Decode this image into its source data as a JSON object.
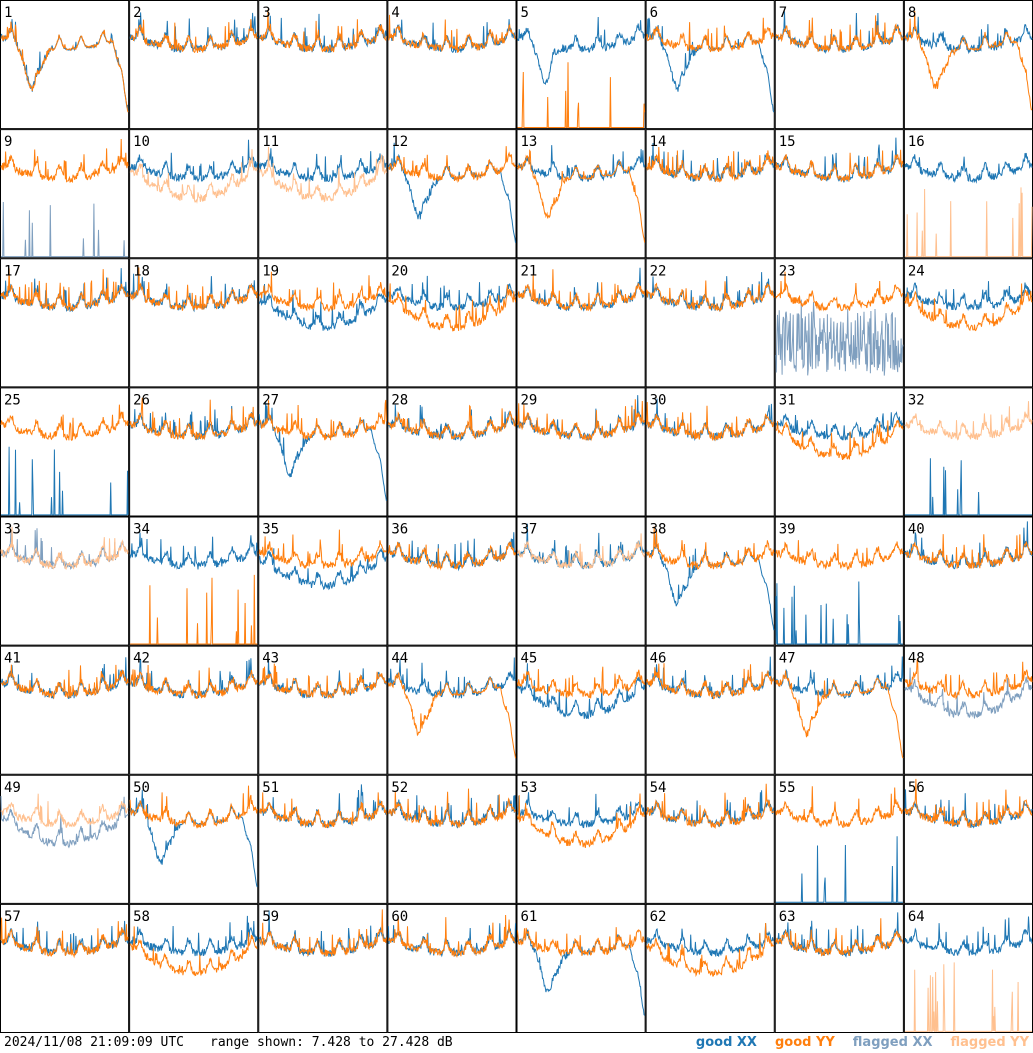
{
  "colors": {
    "good_xx": "#1f77b4",
    "good_yy": "#ff7f0e",
    "flagged_xx": "#7f9fbf",
    "flagged_yy": "#ffc08f",
    "border": "#000000",
    "background": "#ffffff"
  },
  "footer": {
    "timestamp": "2024/11/08 21:09:09 UTC",
    "range": "range shown: 7.428 to 27.428 dB"
  },
  "legend": [
    {
      "label": "good XX",
      "color": "#1f77b4"
    },
    {
      "label": "good YY",
      "color": "#ff7f0e"
    },
    {
      "label": "flagged XX",
      "color": "#7f9fbf"
    },
    {
      "label": "flagged YY",
      "color": "#ffc08f"
    }
  ],
  "chart_data": {
    "type": "line",
    "grid": "8x8 small multiples",
    "ylim": [
      7.428,
      27.428
    ],
    "yunit": "dB",
    "panels": [
      {
        "id": "1",
        "xx": "good",
        "yy": "good",
        "xx_style": "dip-tail",
        "yy_style": "dip-tail"
      },
      {
        "id": "2",
        "xx": "good",
        "yy": "good",
        "xx_style": "normal",
        "yy_style": "normal"
      },
      {
        "id": "3",
        "xx": "good",
        "yy": "good",
        "xx_style": "normal",
        "yy_style": "normal"
      },
      {
        "id": "4",
        "xx": "good",
        "yy": "good",
        "xx_style": "normal",
        "yy_style": "normal"
      },
      {
        "id": "5",
        "xx": "good",
        "yy": "good",
        "xx_style": "deep-dip",
        "yy_style": "spikes"
      },
      {
        "id": "6",
        "xx": "good",
        "yy": "good",
        "xx_style": "dip-tail",
        "yy_style": "normal"
      },
      {
        "id": "7",
        "xx": "good",
        "yy": "good",
        "xx_style": "normal",
        "yy_style": "normal"
      },
      {
        "id": "8",
        "xx": "good",
        "yy": "good",
        "xx_style": "normal",
        "yy_style": "dip-tail"
      },
      {
        "id": "9",
        "xx": "flagged",
        "yy": "good",
        "xx_style": "spikes",
        "yy_style": "normal"
      },
      {
        "id": "10",
        "xx": "good",
        "yy": "flagged",
        "xx_style": "normal",
        "yy_style": "low"
      },
      {
        "id": "11",
        "xx": "good",
        "yy": "flagged",
        "xx_style": "normal",
        "yy_style": "low"
      },
      {
        "id": "12",
        "xx": "good",
        "yy": "good",
        "xx_style": "dip-tail",
        "yy_style": "normal"
      },
      {
        "id": "13",
        "xx": "good",
        "yy": "good",
        "xx_style": "normal",
        "yy_style": "dip-tail"
      },
      {
        "id": "14",
        "xx": "good",
        "yy": "good",
        "xx_style": "normal",
        "yy_style": "normal"
      },
      {
        "id": "15",
        "xx": "good",
        "yy": "good",
        "xx_style": "normal",
        "yy_style": "normal"
      },
      {
        "id": "16",
        "xx": "good",
        "yy": "flagged",
        "xx_style": "normal",
        "yy_style": "spikes"
      },
      {
        "id": "17",
        "xx": "good",
        "yy": "good",
        "xx_style": "normal",
        "yy_style": "normal"
      },
      {
        "id": "18",
        "xx": "good",
        "yy": "good",
        "xx_style": "normal",
        "yy_style": "normal"
      },
      {
        "id": "19",
        "xx": "good",
        "yy": "good",
        "xx_style": "low",
        "yy_style": "normal"
      },
      {
        "id": "20",
        "xx": "good",
        "yy": "good",
        "xx_style": "normal",
        "yy_style": "low"
      },
      {
        "id": "21",
        "xx": "good",
        "yy": "good",
        "xx_style": "normal",
        "yy_style": "normal"
      },
      {
        "id": "22",
        "xx": "good",
        "yy": "good",
        "xx_style": "normal",
        "yy_style": "normal"
      },
      {
        "id": "23",
        "xx": "flagged",
        "yy": "good",
        "xx_style": "noise",
        "yy_style": "normal"
      },
      {
        "id": "24",
        "xx": "good",
        "yy": "good",
        "xx_style": "normal",
        "yy_style": "low"
      },
      {
        "id": "25",
        "xx": "good",
        "yy": "good",
        "xx_style": "spikes",
        "yy_style": "normal"
      },
      {
        "id": "26",
        "xx": "good",
        "yy": "good",
        "xx_style": "normal",
        "yy_style": "normal"
      },
      {
        "id": "27",
        "xx": "good",
        "yy": "good",
        "xx_style": "dip-tail",
        "yy_style": "normal"
      },
      {
        "id": "28",
        "xx": "good",
        "yy": "good",
        "xx_style": "normal",
        "yy_style": "normal"
      },
      {
        "id": "29",
        "xx": "good",
        "yy": "good",
        "xx_style": "normal",
        "yy_style": "normal"
      },
      {
        "id": "30",
        "xx": "good",
        "yy": "good",
        "xx_style": "normal",
        "yy_style": "normal"
      },
      {
        "id": "31",
        "xx": "good",
        "yy": "good",
        "xx_style": "normal",
        "yy_style": "low"
      },
      {
        "id": "32",
        "xx": "good",
        "yy": "flagged",
        "xx_style": "spikes",
        "yy_style": "normal"
      },
      {
        "id": "33",
        "xx": "flagged",
        "yy": "flagged",
        "xx_style": "normal",
        "yy_style": "normal"
      },
      {
        "id": "34",
        "xx": "good",
        "yy": "good",
        "xx_style": "normal",
        "yy_style": "spikes"
      },
      {
        "id": "35",
        "xx": "good",
        "yy": "good",
        "xx_style": "low",
        "yy_style": "normal"
      },
      {
        "id": "36",
        "xx": "good",
        "yy": "good",
        "xx_style": "normal",
        "yy_style": "normal"
      },
      {
        "id": "37",
        "xx": "good",
        "yy": "flagged",
        "xx_style": "normal",
        "yy_style": "normal"
      },
      {
        "id": "38",
        "xx": "good",
        "yy": "good",
        "xx_style": "dip-tail",
        "yy_style": "normal"
      },
      {
        "id": "39",
        "xx": "good",
        "yy": "good",
        "xx_style": "spikes",
        "yy_style": "normal"
      },
      {
        "id": "40",
        "xx": "good",
        "yy": "good",
        "xx_style": "normal",
        "yy_style": "normal"
      },
      {
        "id": "41",
        "xx": "good",
        "yy": "good",
        "xx_style": "normal",
        "yy_style": "normal"
      },
      {
        "id": "42",
        "xx": "good",
        "yy": "good",
        "xx_style": "normal",
        "yy_style": "normal"
      },
      {
        "id": "43",
        "xx": "good",
        "yy": "good",
        "xx_style": "normal",
        "yy_style": "normal"
      },
      {
        "id": "44",
        "xx": "good",
        "yy": "good",
        "xx_style": "normal",
        "yy_style": "dip-tail"
      },
      {
        "id": "45",
        "xx": "good",
        "yy": "good",
        "xx_style": "low",
        "yy_style": "normal"
      },
      {
        "id": "46",
        "xx": "good",
        "yy": "good",
        "xx_style": "normal",
        "yy_style": "normal"
      },
      {
        "id": "47",
        "xx": "good",
        "yy": "good",
        "xx_style": "normal",
        "yy_style": "dip-tail"
      },
      {
        "id": "48",
        "xx": "flagged",
        "yy": "good",
        "xx_style": "low",
        "yy_style": "normal"
      },
      {
        "id": "49",
        "xx": "flagged",
        "yy": "flagged",
        "xx_style": "low",
        "yy_style": "normal"
      },
      {
        "id": "50",
        "xx": "good",
        "yy": "good",
        "xx_style": "dip-tail",
        "yy_style": "normal"
      },
      {
        "id": "51",
        "xx": "good",
        "yy": "good",
        "xx_style": "normal",
        "yy_style": "normal"
      },
      {
        "id": "52",
        "xx": "good",
        "yy": "good",
        "xx_style": "normal",
        "yy_style": "normal"
      },
      {
        "id": "53",
        "xx": "good",
        "yy": "good",
        "xx_style": "normal",
        "yy_style": "low"
      },
      {
        "id": "54",
        "xx": "good",
        "yy": "good",
        "xx_style": "normal",
        "yy_style": "normal"
      },
      {
        "id": "55",
        "xx": "good",
        "yy": "good",
        "xx_style": "spikes",
        "yy_style": "normal"
      },
      {
        "id": "56",
        "xx": "good",
        "yy": "good",
        "xx_style": "normal",
        "yy_style": "normal"
      },
      {
        "id": "57",
        "xx": "good",
        "yy": "good",
        "xx_style": "normal",
        "yy_style": "normal"
      },
      {
        "id": "58",
        "xx": "good",
        "yy": "good",
        "xx_style": "normal",
        "yy_style": "low"
      },
      {
        "id": "59",
        "xx": "good",
        "yy": "good",
        "xx_style": "normal",
        "yy_style": "normal"
      },
      {
        "id": "60",
        "xx": "good",
        "yy": "good",
        "xx_style": "normal",
        "yy_style": "normal"
      },
      {
        "id": "61",
        "xx": "good",
        "yy": "good",
        "xx_style": "dip-tail",
        "yy_style": "normal"
      },
      {
        "id": "62",
        "xx": "good",
        "yy": "good",
        "xx_style": "normal",
        "yy_style": "low"
      },
      {
        "id": "63",
        "xx": "good",
        "yy": "good",
        "xx_style": "normal",
        "yy_style": "normal"
      },
      {
        "id": "64",
        "xx": "good",
        "yy": "flagged",
        "xx_style": "normal",
        "yy_style": "spikes"
      }
    ]
  }
}
